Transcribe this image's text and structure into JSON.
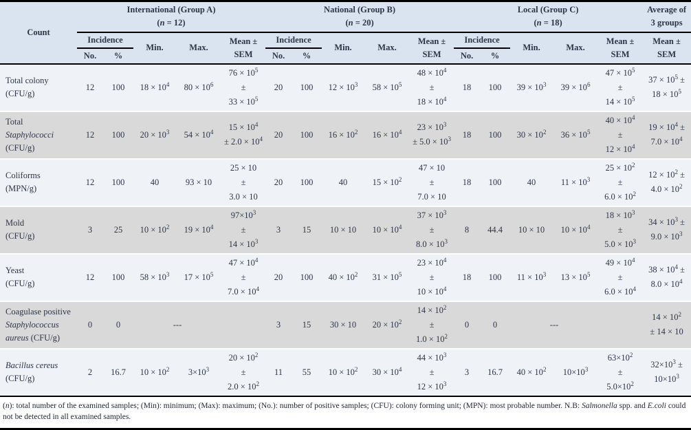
{
  "colors": {
    "header_bg": "#dae4f0",
    "row_light": "#eff2f6",
    "row_dark": "#d9d9d9",
    "text": "#2c3548",
    "border": "#000000"
  },
  "table": {
    "corner_label": "Count",
    "columns": {
      "incidence": "Incidence",
      "no": "No.",
      "pct": "%",
      "min": "Min.",
      "max": "Max.",
      "mean_line1": "Mean ±",
      "mean_line2": "SEM"
    },
    "groups": [
      {
        "title": "International (Group A)",
        "n": "12"
      },
      {
        "title": "National (Group B)",
        "n": "20"
      },
      {
        "title": "Local (Group C)",
        "n": "18"
      }
    ],
    "average": {
      "title_line1": "Average of",
      "title_line2": "3 groups",
      "mean_line1": "Mean ±",
      "mean_line2": "SEM"
    },
    "rows": [
      {
        "label": [
          [
            {
              "t": "Total colony"
            }
          ],
          [
            {
              "t": "(CFU/g)"
            }
          ]
        ],
        "groups": [
          {
            "no": "12",
            "pct": "100",
            "min": "18 × 10^4",
            "max": "80 × 10^6",
            "mean": [
              "76 × 10^5",
              "±",
              "33 × 10^5"
            ]
          },
          {
            "no": "20",
            "pct": "100",
            "min": "12 × 10^3",
            "max": "58 × 10^5",
            "mean": [
              "48 × 10^4",
              "±",
              "18 × 10^4"
            ]
          },
          {
            "no": "18",
            "pct": "100",
            "min": "39 × 10^3",
            "max": "39 × 10^6",
            "mean": [
              "47 × 10^5",
              "±",
              "14 × 10^5"
            ]
          }
        ],
        "avg": [
          "37 × 10^5 ±",
          "18 × 10^5"
        ]
      },
      {
        "label": [
          [
            {
              "t": "Total"
            }
          ],
          [
            {
              "t": "Staphylococci",
              "i": true
            }
          ],
          [
            {
              "t": "(CFU/g)"
            }
          ]
        ],
        "groups": [
          {
            "no": "12",
            "pct": "100",
            "min": "20 × 10^3",
            "max": "54 × 10^4",
            "mean": [
              "15 × 10^4",
              "± 2.0 × 10^4"
            ]
          },
          {
            "no": "20",
            "pct": "100",
            "min": "16 × 10^2",
            "max": "16 × 10^4",
            "mean": [
              "23 × 10^3",
              "± 5.0 × 10^3"
            ]
          },
          {
            "no": "18",
            "pct": "100",
            "min": "30 × 10^2",
            "max": "36 × 10^5",
            "mean": [
              "40 × 10^4",
              "±",
              "12 × 10^4"
            ]
          }
        ],
        "avg": [
          "19 × 10^4 ±",
          "7.0 × 10^4"
        ]
      },
      {
        "label": [
          [
            {
              "t": "Coliforms"
            }
          ],
          [
            {
              "t": "(MPN/g)"
            }
          ]
        ],
        "groups": [
          {
            "no": "12",
            "pct": "100",
            "min": "40",
            "max": "93 × 10",
            "mean": [
              "25 × 10",
              "±",
              "3.0 × 10"
            ]
          },
          {
            "no": "20",
            "pct": "100",
            "min": "40",
            "max": "15 × 10^2",
            "mean": [
              "47 × 10",
              "±",
              "7.0 × 10"
            ]
          },
          {
            "no": "18",
            "pct": "100",
            "min": "40",
            "max": "11 × 10^3",
            "mean": [
              "25 × 10^2",
              "±",
              "6.0 × 10^2"
            ]
          }
        ],
        "avg": [
          "12 × 10^2 ±",
          "4.0 × 10^2"
        ]
      },
      {
        "label": [
          [
            {
              "t": "Mold"
            }
          ],
          [
            {
              "t": "(CFU/g)"
            }
          ]
        ],
        "groups": [
          {
            "no": "3",
            "pct": "25",
            "min": "10 × 10^2",
            "max": "19 × 10^4",
            "mean": [
              "97×10^3",
              "±",
              "14 × 10^3"
            ]
          },
          {
            "no": "3",
            "pct": "15",
            "min": "10 × 10",
            "max": "10 × 10^4",
            "mean": [
              "37 × 10^3",
              "±",
              "8.0 × 10^3"
            ]
          },
          {
            "no": "8",
            "pct": "44.4",
            "min": "10 × 10",
            "max": "10 × 10^4",
            "mean": [
              "18 × 10^3",
              "±",
              "5.0 × 10^3"
            ]
          }
        ],
        "avg": [
          "34 × 10^3 ±",
          "9.0 × 10^3"
        ]
      },
      {
        "label": [
          [
            {
              "t": "Yeast"
            }
          ],
          [
            {
              "t": "(CFU/g)"
            }
          ]
        ],
        "groups": [
          {
            "no": "12",
            "pct": "100",
            "min": "58 × 10^3",
            "max": "17 × 10^5",
            "mean": [
              "47 × 10^4",
              "±",
              "7.0 × 10^4"
            ]
          },
          {
            "no": "20",
            "pct": "100",
            "min": "40 × 10^2",
            "max": "31 × 10^5",
            "mean": [
              "23 × 10^4",
              "±",
              "10 × 10^4"
            ]
          },
          {
            "no": "18",
            "pct": "100",
            "min": "11 × 10^3",
            "max": "13 × 10^5",
            "mean": [
              "49 × 10^4",
              "±",
              "6.0 × 10^4"
            ]
          }
        ],
        "avg": [
          "38 × 10^4 ±",
          "8.0 × 10^4"
        ]
      },
      {
        "label": [
          [
            {
              "t": "Coagulase positive"
            }
          ],
          [
            {
              "t": "Staphylococcus",
              "i": true
            }
          ],
          [
            {
              "t": "aureus",
              "i": true
            },
            {
              "t": " (CFU/g)"
            }
          ]
        ],
        "groups": [
          {
            "no": "0",
            "pct": "0",
            "dash": "---"
          },
          {
            "no": "3",
            "pct": "15",
            "min": "30 × 10",
            "max": "20 × 10^2",
            "mean": [
              "14 × 10^2",
              "±",
              "1.0 × 10^2"
            ]
          },
          {
            "no": "0",
            "pct": "0",
            "dash": "---"
          }
        ],
        "avg": [
          "14 × 10^2",
          "± 14 × 10"
        ]
      },
      {
        "label": [
          [
            {
              "t": "Bacillus cereus",
              "i": true
            }
          ],
          [
            {
              "t": "(CFU/g)"
            }
          ]
        ],
        "groups": [
          {
            "no": "2",
            "pct": "16.7",
            "min": "10 × 10^2",
            "max": "3×10^3",
            "mean": [
              "20 × 10^2",
              "±",
              "2.0 × 10^2"
            ]
          },
          {
            "no": "11",
            "pct": "55",
            "min": "10 × 10^2",
            "max": "30 × 10^4",
            "mean": [
              "44 × 10^3",
              "±",
              "12 × 10^3"
            ]
          },
          {
            "no": "3",
            "pct": "16.7",
            "min": "40 × 10^2",
            "max": "10×10^3",
            "mean": [
              "63×10^2",
              "±",
              "5.0×10^2"
            ]
          }
        ],
        "avg": [
          "32×10^3 ±",
          "10×10^3"
        ]
      }
    ]
  },
  "footnote": {
    "segments": [
      {
        "t": "("
      },
      {
        "t": "n",
        "i": true
      },
      {
        "t": "): total number of the examined samples; (Min): minimum; (Max): maximum; (No.): number of positive samples; (CFU): colony forming unit; (MPN): most probable number.  N.B: "
      },
      {
        "t": "Salmonella",
        "i": true
      },
      {
        "t": " spp. and "
      },
      {
        "t": "E.coli",
        "i": true
      },
      {
        "t": " could not be detected in all examined samples."
      }
    ]
  }
}
